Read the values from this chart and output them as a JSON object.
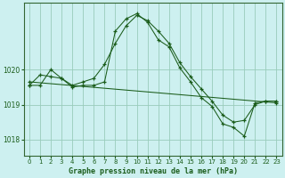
{
  "title": "Graphe pression niveau de la mer (hPa)",
  "bg_color": "#cdf0f0",
  "line_color": "#1a5c1a",
  "grid_color": "#99ccbb",
  "xlim": [
    -0.5,
    23.5
  ],
  "ylim": [
    1017.55,
    1021.9
  ],
  "yticks": [
    1018,
    1019,
    1020
  ],
  "xticks": [
    0,
    1,
    2,
    3,
    4,
    5,
    6,
    7,
    8,
    9,
    10,
    11,
    12,
    13,
    14,
    15,
    16,
    17,
    18,
    19,
    20,
    21,
    22,
    23
  ],
  "line_jagged_x": [
    0,
    1,
    2,
    3,
    4,
    5,
    6,
    7,
    8,
    9,
    10,
    11,
    12,
    13,
    14,
    15,
    16,
    17,
    18,
    19,
    20,
    21,
    22,
    23
  ],
  "line_jagged_y": [
    1019.55,
    1019.55,
    1020.0,
    1019.75,
    1019.5,
    1019.55,
    1019.55,
    1019.65,
    1021.1,
    1021.45,
    1021.6,
    1021.35,
    1020.85,
    1020.65,
    1020.05,
    1019.65,
    1019.2,
    1018.95,
    1018.45,
    1018.35,
    1018.1,
    1019.05,
    1019.1,
    1019.1
  ],
  "line_smooth_x": [
    0,
    1,
    2,
    3,
    4,
    5,
    6,
    7,
    8,
    9,
    10,
    11,
    12,
    13,
    14,
    15,
    16,
    17,
    18,
    19,
    20,
    21,
    22,
    23
  ],
  "line_smooth_y": [
    1019.55,
    1019.85,
    1019.8,
    1019.75,
    1019.55,
    1019.65,
    1019.75,
    1020.15,
    1020.75,
    1021.25,
    1021.55,
    1021.4,
    1021.1,
    1020.75,
    1020.2,
    1019.8,
    1019.45,
    1019.1,
    1018.7,
    1018.5,
    1018.55,
    1019.0,
    1019.1,
    1019.1
  ],
  "line_trend_x": [
    0,
    23
  ],
  "line_trend_y": [
    1019.65,
    1019.05
  ]
}
